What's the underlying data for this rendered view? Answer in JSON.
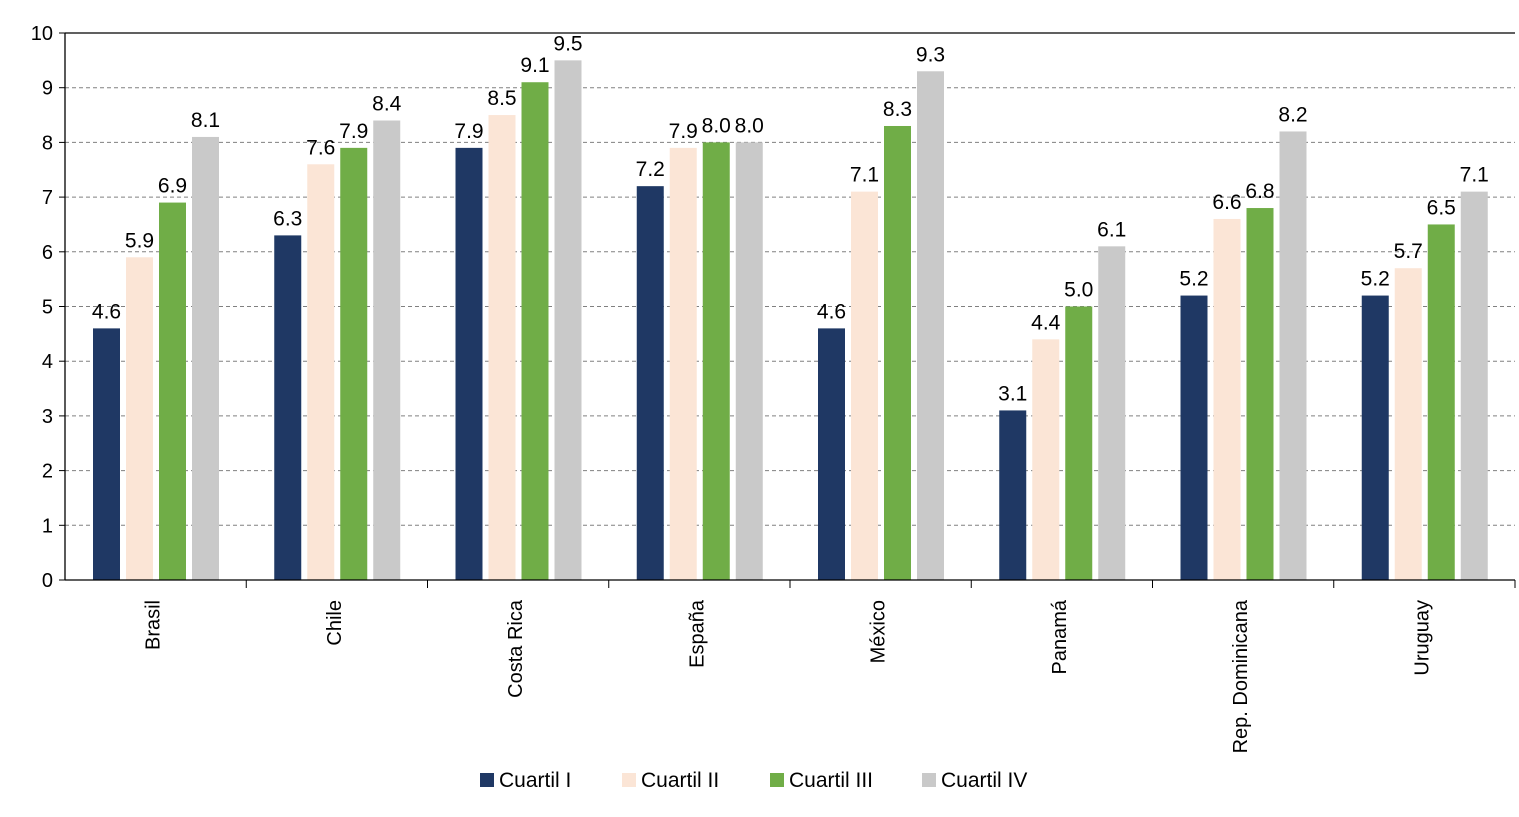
{
  "chart_data": {
    "type": "bar",
    "title": "",
    "xlabel": "",
    "ylabel": "",
    "ylim": [
      0,
      10
    ],
    "yticks": [
      0,
      1,
      2,
      3,
      4,
      5,
      6,
      7,
      8,
      9,
      10
    ],
    "grid": "horizontal dashed",
    "legend_position": "bottom",
    "categories": [
      "Brasil",
      "Chile",
      "Costa Rica",
      "España",
      "México",
      "Panamá",
      "Rep. Dominicana",
      "Uruguay"
    ],
    "series": [
      {
        "name": "Cuartil I",
        "color": "#1f3864",
        "values": [
          4.6,
          6.3,
          7.9,
          7.2,
          4.6,
          3.1,
          5.2,
          5.2
        ]
      },
      {
        "name": "Cuartil II",
        "color": "#fbe5d6",
        "values": [
          5.9,
          7.6,
          8.5,
          7.9,
          7.1,
          4.4,
          6.6,
          5.7
        ]
      },
      {
        "name": "Cuartil III",
        "color": "#70ad47",
        "values": [
          6.9,
          7.9,
          9.1,
          8.0,
          8.3,
          5.0,
          6.8,
          6.5
        ]
      },
      {
        "name": "Cuartil IV",
        "color": "#c9c9c9",
        "values": [
          8.1,
          8.4,
          9.5,
          8.0,
          9.3,
          6.1,
          8.2,
          7.1
        ]
      }
    ]
  }
}
